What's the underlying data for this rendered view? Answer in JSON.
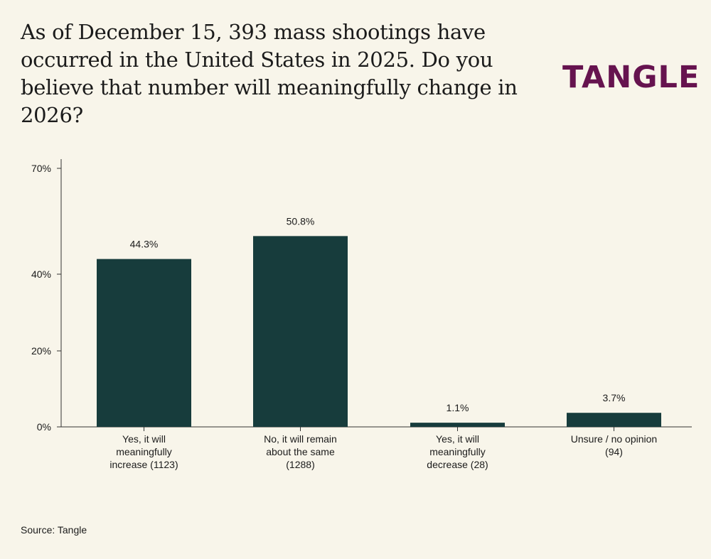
{
  "header": {
    "title": "As of December 15, 393 mass shootings have occurred in the United States in 2025. Do you believe that number will meaningfully change in 2026?",
    "logo_text": "TANGLE"
  },
  "colors": {
    "background": "#f8f5ea",
    "bar": "#173c3c",
    "logo": "#66134f"
  },
  "chart_data": {
    "type": "bar",
    "categories": [
      [
        "Yes, it will",
        "meaningfully",
        "increase (1123)"
      ],
      [
        "No, it will remain",
        "about the same",
        "(1288)"
      ],
      [
        "Yes, it will",
        "meaningfully",
        "decrease (28)"
      ],
      [
        "Unsure / no opinion",
        "(94)"
      ]
    ],
    "values": [
      44.3,
      50.8,
      1.1,
      3.7
    ],
    "value_labels": [
      "44.3%",
      "50.8%",
      "1.1%",
      "3.7%"
    ],
    "yticks": [
      0,
      20,
      40,
      70
    ],
    "ytick_labels": [
      "0%",
      "20%",
      "40%",
      "70%"
    ],
    "ylim": [
      0,
      70
    ],
    "grid": false,
    "title": "As of December 15, 393 mass shootings have occurred in the United States in 2025. Do you believe that number will meaningfully change in 2026?",
    "xlabel": "",
    "ylabel": ""
  },
  "footer": {
    "source": "Source: Tangle"
  }
}
